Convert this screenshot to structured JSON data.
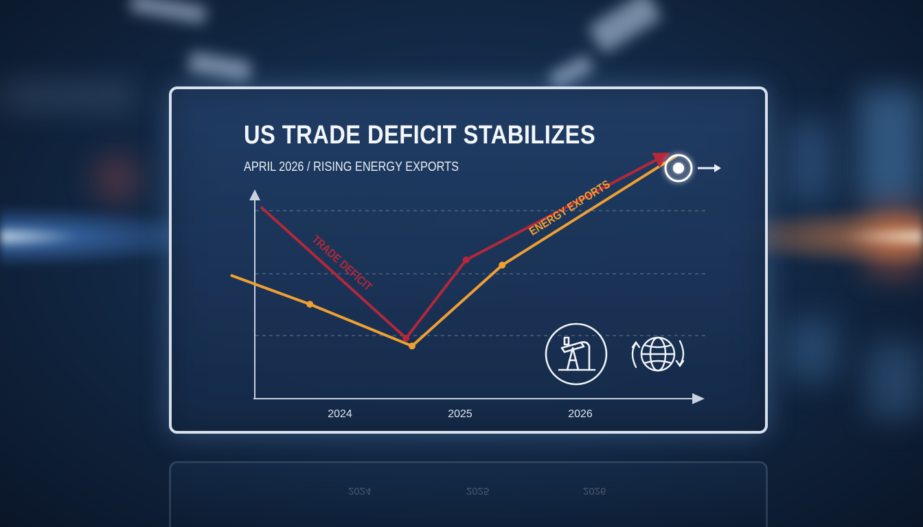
{
  "chart_data": {
    "type": "line",
    "title": "US TRADE DEFICIT STABILIZES",
    "subtitle": "APRIL 2026 / RISING ENERGY EXPORTS",
    "x_tick_labels": [
      "2024",
      "2025",
      "2026"
    ],
    "xlim": [
      2023.0,
      2027.0
    ],
    "ylim": [
      0,
      100
    ],
    "grid": "horizontal-dashed",
    "series": [
      {
        "name": "TRADE DEFICIT",
        "color": "#b3283a",
        "x": [
          2023.35,
          2024.55,
          2025.05,
          2026.7
        ],
        "y": [
          74,
          24,
          54,
          94
        ],
        "markers": [
          false,
          true,
          true,
          false
        ],
        "arrow_end": true
      },
      {
        "name": "ENERGY EXPORTS",
        "color": "#f0a033",
        "x": [
          2023.1,
          2023.75,
          2024.6,
          2025.35,
          2026.8
        ],
        "y": [
          48,
          37,
          21,
          52,
          94
        ],
        "markers": [
          false,
          true,
          true,
          true,
          false
        ],
        "arrow_end": false
      }
    ],
    "endpoint_icon": "target-circle-icon",
    "end_arrow_icon": "arrow-right-icon"
  },
  "icons": {
    "oil": "oil-pumpjack-icon",
    "globe": "globe-trade-cycle-icon"
  },
  "reflection_tick_labels": [
    "2024",
    "2025",
    "2026"
  ]
}
